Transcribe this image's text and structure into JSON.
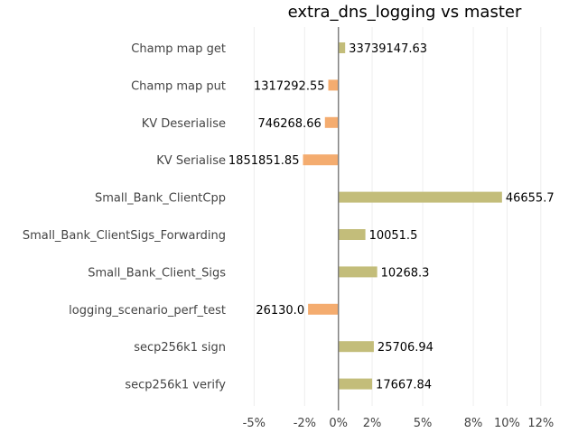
{
  "chart_data": {
    "type": "bar",
    "orientation": "horizontal",
    "title": "extra_dns_logging vs master",
    "xlabel": "",
    "ylabel": "",
    "categories": [
      "Champ map get",
      "Champ map put",
      "KV Deserialise",
      "KV Serialise",
      "Small_Bank_ClientCpp",
      "Small_Bank_ClientSigs_Forwarding",
      "Small_Bank_Client_Sigs",
      "logging_scenario_perf_test",
      "secp256k1 sign",
      "secp256k1 verify"
    ],
    "values": [
      0.4,
      -0.6,
      -0.8,
      -2.1,
      9.7,
      1.6,
      2.3,
      -1.8,
      2.1,
      2.0
    ],
    "data_labels": [
      "33739147.63",
      "1317292.55",
      "746268.66",
      "1851851.85",
      "46655.7",
      "10051.5",
      "10268.3",
      "26130.0",
      "25706.94",
      "17667.84"
    ],
    "xlim": [
      -5.5,
      12.6
    ],
    "xticks": [
      -5,
      -2,
      0,
      2,
      5,
      8,
      10,
      12
    ],
    "xtick_labels": [
      "-5%",
      "-2%",
      "0%",
      "2%",
      "5%",
      "8%",
      "10%",
      "12%"
    ],
    "grid": true,
    "colors": {
      "positive": "#c3bd7a",
      "negative": "#f4ac6f",
      "zero_line": "#808080",
      "grid": "#eeeeee"
    }
  }
}
